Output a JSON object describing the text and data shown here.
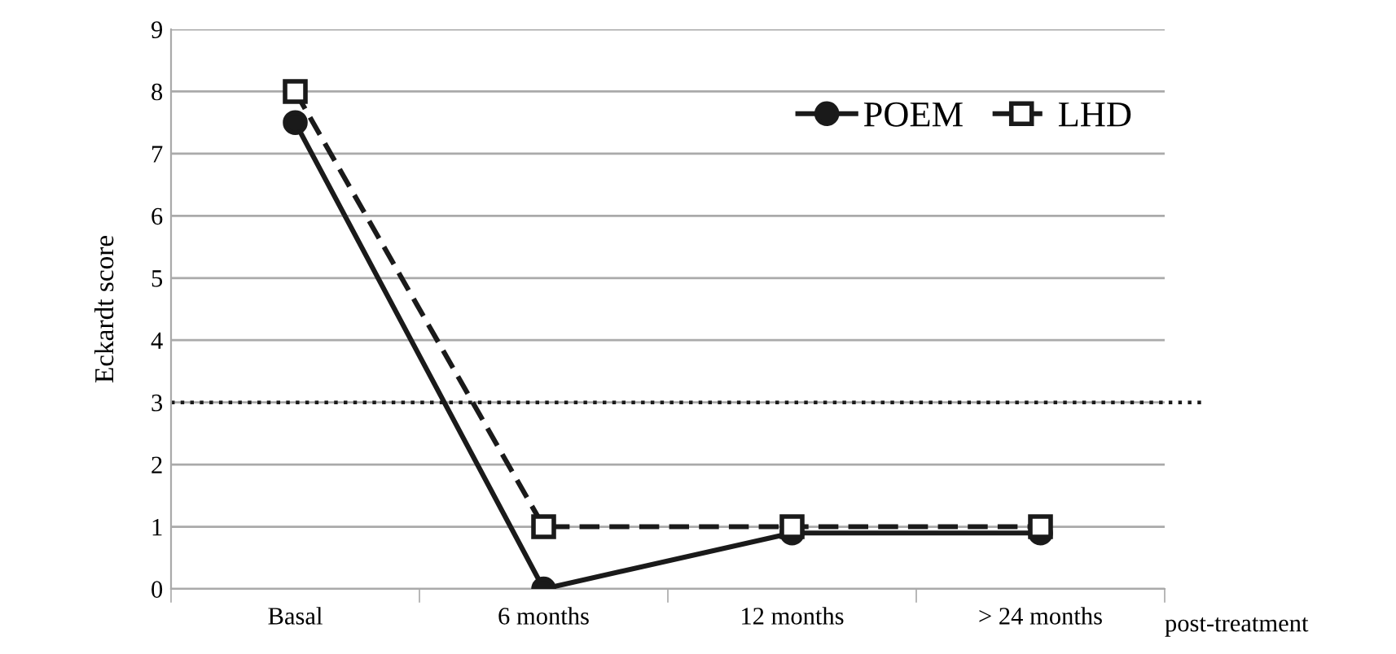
{
  "chart_data": {
    "type": "line",
    "ylabel": "Eckardt score",
    "xlabel": "post-treatment",
    "categories": [
      "Basal",
      "6 months",
      "12 months",
      "> 24 months"
    ],
    "series": [
      {
        "name": "POEM",
        "color": "#1a1a1a",
        "values": [
          7.5,
          0,
          0.9,
          0.9
        ],
        "marker": "circle",
        "line_style": "solid"
      },
      {
        "name": "LHD",
        "color": "#1a1a1a",
        "values": [
          8,
          1,
          1,
          1
        ],
        "marker": "square",
        "line_style": "dashed"
      }
    ],
    "ylim": [
      0,
      9
    ],
    "yticks": [
      0,
      1,
      2,
      3,
      4,
      5,
      6,
      7,
      8,
      9
    ],
    "grid": "y",
    "legend": "top right",
    "ref_lines": [
      {
        "axis": "y",
        "value": 3,
        "color": "#1a1a1a",
        "line_style": "dotted"
      }
    ]
  }
}
